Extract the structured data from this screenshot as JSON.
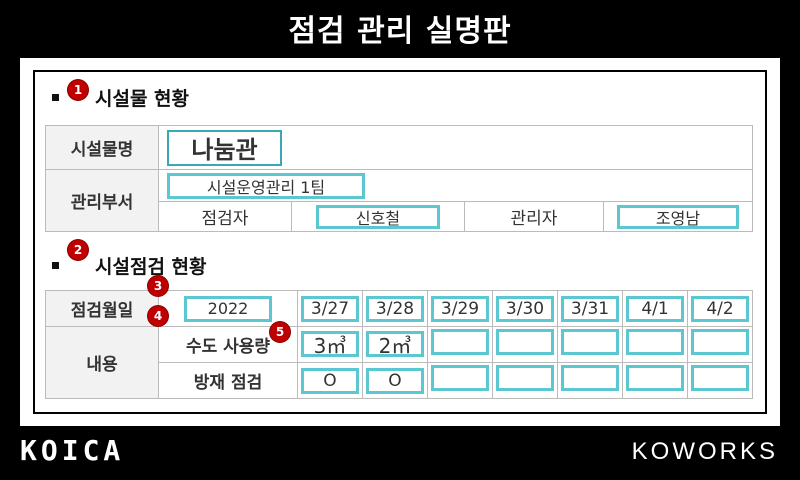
{
  "title": "점검 관리 실명판",
  "section1": {
    "marker": "1",
    "heading": "시설물 현황",
    "facility_name_label": "시설물명",
    "facility_name": "나눔관",
    "department_label": "관리부서",
    "department": "시설운영관리 1팀",
    "inspector_label": "점검자",
    "inspector": "신호철",
    "manager_label": "관리자",
    "manager": "조영남"
  },
  "section2": {
    "marker": "2",
    "heading": "시설점검 현황",
    "date_label": "점검월일",
    "marker3": "3",
    "marker4": "4",
    "marker5": "5",
    "year": "2022",
    "dates": [
      "3/27",
      "3/28",
      "3/29",
      "3/30",
      "3/31",
      "4/1",
      "4/2"
    ],
    "content_label": "내용",
    "water_label": "수도 사용량",
    "water_values": [
      "3㎥",
      "2㎥",
      "",
      "",
      "",
      "",
      ""
    ],
    "fire_label": "방재 점검",
    "fire_values": [
      "O",
      "O",
      "",
      "",
      "",
      "",
      ""
    ]
  },
  "footer": {
    "left_logo": "KOICA",
    "left_small": "",
    "right_logo": "KOWORKS"
  },
  "colors": {
    "background": "#000000",
    "box_border": "#5bc7d0",
    "marker": "#c00000"
  }
}
